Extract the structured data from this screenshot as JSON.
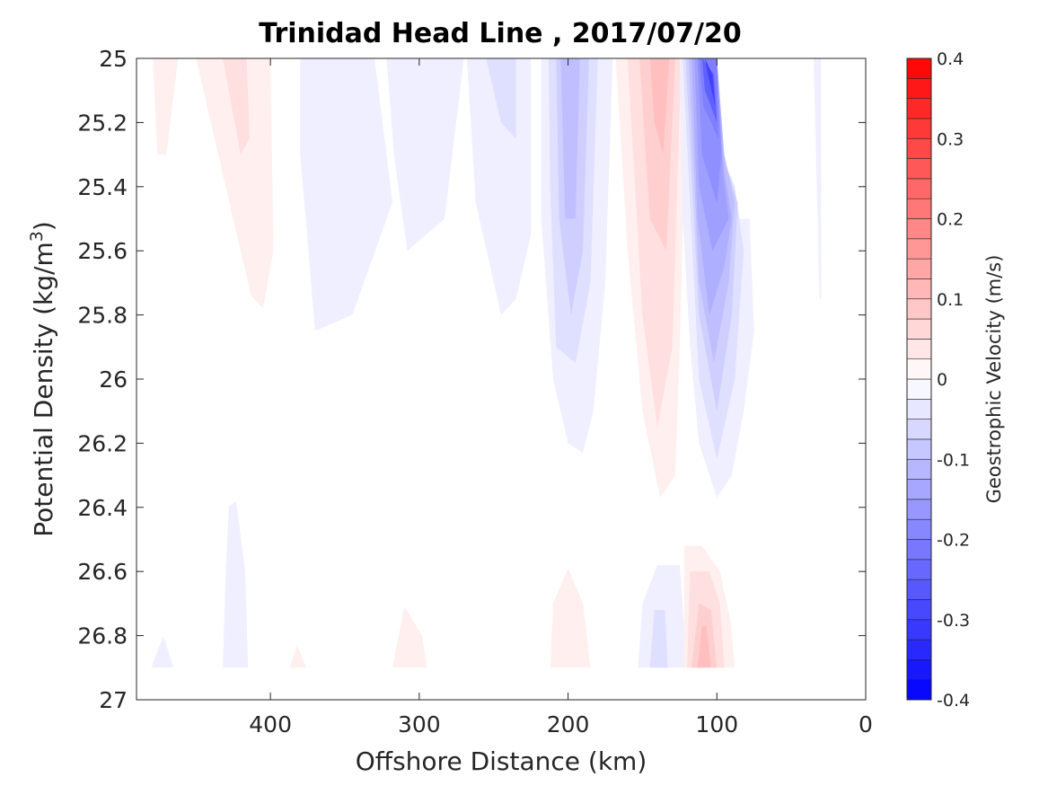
{
  "chart_data": {
    "type": "heatmap",
    "title": "Trinidad Head Line , 2017/07/20",
    "xlabel": "Offshore Distance (km)",
    "ylabel_main": "Potential Density (kg/m",
    "ylabel_sup": "3",
    "ylabel_close": ")",
    "xlim": [
      490,
      0
    ],
    "ylim": [
      25,
      27
    ],
    "x_reversed": true,
    "y_reversed": true,
    "x_ticks": [
      400,
      300,
      200,
      100,
      0
    ],
    "y_ticks": [
      25,
      25.2,
      25.4,
      25.6,
      25.8,
      26,
      26.2,
      26.4,
      26.6,
      26.8,
      27
    ],
    "y_tick_labels": [
      "25",
      "25.2",
      "25.4",
      "25.6",
      "25.8",
      "26",
      "26.2",
      "26.4",
      "26.6",
      "26.8",
      "27"
    ],
    "colorbar": {
      "label": "Geostrophic Velocity (m/s)",
      "range": [
        -0.4,
        0.4
      ],
      "levels_step": 0.025,
      "ticks": [
        0.4,
        0.3,
        0.2,
        0.1,
        0,
        -0.1,
        -0.2,
        -0.3,
        -0.4
      ],
      "tick_labels": [
        "0.4",
        "0.3",
        "0.2",
        "0.1",
        "0",
        "-0.1",
        "-0.2",
        "-0.3",
        "-0.4"
      ],
      "positive_color": "#ff0000",
      "negative_color": "#0000ff",
      "zero_color": "#ffffff"
    },
    "contour_regions": [
      {
        "name": "pos-475",
        "value": 0.025,
        "points": [
          [
            479,
            25
          ],
          [
            462,
            25
          ],
          [
            470,
            25.3
          ],
          [
            476,
            25.3
          ]
        ]
      },
      {
        "name": "pos-420-outer",
        "value": 0.025,
        "points": [
          [
            450,
            25
          ],
          [
            400,
            25
          ],
          [
            398,
            25.6
          ],
          [
            405,
            25.78
          ],
          [
            413,
            25.74
          ],
          [
            435,
            25.3
          ]
        ]
      },
      {
        "name": "pos-420-inner",
        "value": 0.05,
        "points": [
          [
            432,
            25
          ],
          [
            416,
            25
          ],
          [
            414,
            25.25
          ],
          [
            420,
            25.3
          ]
        ]
      },
      {
        "name": "neg-380",
        "value": -0.025,
        "points": [
          [
            380,
            25
          ],
          [
            330,
            25
          ],
          [
            318,
            25.45
          ],
          [
            345,
            25.8
          ],
          [
            370,
            25.85
          ],
          [
            380,
            25.3
          ]
        ]
      },
      {
        "name": "neg-300",
        "value": -0.025,
        "points": [
          [
            322,
            25
          ],
          [
            270,
            25
          ],
          [
            283,
            25.5
          ],
          [
            308,
            25.6
          ],
          [
            317,
            25.3
          ]
        ]
      },
      {
        "name": "neg-250-outer",
        "value": -0.025,
        "points": [
          [
            268,
            25
          ],
          [
            225,
            25
          ],
          [
            225,
            25.55
          ],
          [
            235,
            25.75
          ],
          [
            245,
            25.8
          ],
          [
            262,
            25.45
          ]
        ]
      },
      {
        "name": "neg-250-inner",
        "value": -0.05,
        "points": [
          [
            255,
            25
          ],
          [
            235,
            25
          ],
          [
            235,
            25.25
          ],
          [
            245,
            25.2
          ]
        ]
      },
      {
        "name": "neg-200-1",
        "value": -0.025,
        "points": [
          [
            218,
            25
          ],
          [
            170,
            25
          ],
          [
            175,
            25.7
          ],
          [
            183,
            26.1
          ],
          [
            190,
            26.23
          ],
          [
            200,
            26.2
          ],
          [
            210,
            26
          ],
          [
            218,
            25.5
          ]
        ]
      },
      {
        "name": "neg-200-2",
        "value": -0.05,
        "points": [
          [
            213,
            25
          ],
          [
            180,
            25
          ],
          [
            185,
            25.7
          ],
          [
            195,
            25.95
          ],
          [
            208,
            25.9
          ],
          [
            212,
            25.4
          ]
        ]
      },
      {
        "name": "neg-200-3",
        "value": -0.075,
        "points": [
          [
            208,
            25
          ],
          [
            186,
            25
          ],
          [
            190,
            25.6
          ],
          [
            198,
            25.8
          ],
          [
            206,
            25.5
          ]
        ]
      },
      {
        "name": "neg-200-4",
        "value": -0.1,
        "points": [
          [
            205,
            25
          ],
          [
            192,
            25
          ],
          [
            195,
            25.5
          ],
          [
            202,
            25.5
          ]
        ]
      },
      {
        "name": "pos-140-1",
        "value": 0.025,
        "points": [
          [
            168,
            25
          ],
          [
            120,
            25
          ],
          [
            125,
            25.9
          ],
          [
            128,
            26.3
          ],
          [
            138,
            26.37
          ],
          [
            150,
            26.1
          ],
          [
            160,
            25.6
          ]
        ]
      },
      {
        "name": "pos-140-2",
        "value": 0.05,
        "points": [
          [
            160,
            25
          ],
          [
            124,
            25
          ],
          [
            130,
            25.9
          ],
          [
            140,
            26.15
          ],
          [
            150,
            25.8
          ]
        ]
      },
      {
        "name": "pos-140-3",
        "value": 0.075,
        "points": [
          [
            152,
            25
          ],
          [
            128,
            25
          ],
          [
            134,
            25.6
          ],
          [
            145,
            25.5
          ]
        ]
      },
      {
        "name": "pos-140-4",
        "value": 0.1,
        "points": [
          [
            145,
            25
          ],
          [
            132,
            25
          ],
          [
            136,
            25.3
          ],
          [
            142,
            25.2
          ]
        ]
      },
      {
        "name": "neg-100-1",
        "value": -0.025,
        "points": [
          [
            125,
            25
          ],
          [
            100,
            25
          ],
          [
            98,
            25.3
          ],
          [
            85,
            25.5
          ],
          [
            78,
            25.5
          ],
          [
            75,
            25.85
          ],
          [
            82,
            26.1
          ],
          [
            90,
            26.3
          ],
          [
            100,
            26.37
          ],
          [
            112,
            26.2
          ],
          [
            118,
            25.9
          ],
          [
            123,
            25.5
          ]
        ]
      },
      {
        "name": "neg-100-2",
        "value": -0.05,
        "points": [
          [
            123,
            25
          ],
          [
            100,
            25
          ],
          [
            97,
            25.3
          ],
          [
            88,
            25.4
          ],
          [
            82,
            25.6
          ],
          [
            88,
            26
          ],
          [
            100,
            26.25
          ],
          [
            112,
            26
          ]
        ]
      },
      {
        "name": "neg-100-3",
        "value": -0.075,
        "points": [
          [
            121,
            25
          ],
          [
            100,
            25
          ],
          [
            96,
            25.3
          ],
          [
            86,
            25.45
          ],
          [
            90,
            25.8
          ],
          [
            100,
            26.1
          ],
          [
            112,
            25.8
          ]
        ]
      },
      {
        "name": "neg-100-4",
        "value": -0.1,
        "points": [
          [
            119,
            25
          ],
          [
            100,
            25
          ],
          [
            95,
            25.3
          ],
          [
            88,
            25.45
          ],
          [
            92,
            25.7
          ],
          [
            102,
            25.95
          ],
          [
            112,
            25.7
          ]
        ]
      },
      {
        "name": "neg-100-5",
        "value": -0.125,
        "points": [
          [
            117,
            25
          ],
          [
            100,
            25
          ],
          [
            95,
            25.35
          ],
          [
            90,
            25.5
          ],
          [
            95,
            25.65
          ],
          [
            105,
            25.8
          ],
          [
            113,
            25.5
          ]
        ]
      },
      {
        "name": "neg-100-6",
        "value": -0.15,
        "points": [
          [
            115,
            25
          ],
          [
            100,
            25
          ],
          [
            96,
            25.35
          ],
          [
            92,
            25.5
          ],
          [
            103,
            25.6
          ],
          [
            112,
            25.4
          ]
        ]
      },
      {
        "name": "neg-100-7",
        "value": -0.175,
        "points": [
          [
            113,
            25
          ],
          [
            100,
            25
          ],
          [
            97,
            25.3
          ],
          [
            100,
            25.45
          ],
          [
            110,
            25.3
          ]
        ]
      },
      {
        "name": "neg-100-8",
        "value": -0.2,
        "points": [
          [
            112,
            25
          ],
          [
            100,
            25
          ],
          [
            99,
            25.25
          ],
          [
            109,
            25.15
          ]
        ]
      },
      {
        "name": "neg-100-9",
        "value": -0.25,
        "points": [
          [
            110,
            25
          ],
          [
            102,
            25.05
          ],
          [
            100,
            25.2
          ],
          [
            108,
            25.1
          ]
        ]
      },
      {
        "name": "neg-100-10",
        "value": -0.3,
        "points": [
          [
            108,
            25
          ],
          [
            103,
            25.05
          ],
          [
            101,
            25.15
          ],
          [
            106,
            25.05
          ]
        ]
      },
      {
        "name": "neg-30",
        "value": -0.025,
        "points": [
          [
            35,
            25
          ],
          [
            30,
            25
          ],
          [
            30,
            25.75
          ],
          [
            31,
            25.75
          ]
        ]
      },
      {
        "name": "neg-460-bottom",
        "value": -0.025,
        "points": [
          [
            480,
            26.9
          ],
          [
            465,
            26.9
          ],
          [
            472,
            26.8
          ]
        ]
      },
      {
        "name": "neg-420-bottom",
        "value": -0.025,
        "points": [
          [
            432,
            26.9
          ],
          [
            415,
            26.9
          ],
          [
            417,
            26.6
          ],
          [
            423,
            26.38
          ],
          [
            428,
            26.4
          ],
          [
            430,
            26.6
          ]
        ]
      },
      {
        "name": "pos-385-bottom",
        "value": 0.025,
        "points": [
          [
            387,
            26.9
          ],
          [
            376,
            26.9
          ],
          [
            382,
            26.83
          ]
        ]
      },
      {
        "name": "pos-310-bottom",
        "value": 0.025,
        "points": [
          [
            318,
            26.9
          ],
          [
            295,
            26.9
          ],
          [
            298,
            26.8
          ],
          [
            310,
            26.71
          ]
        ]
      },
      {
        "name": "pos-200-bottom",
        "value": 0.025,
        "points": [
          [
            212,
            26.9
          ],
          [
            185,
            26.9
          ],
          [
            190,
            26.7
          ],
          [
            200,
            26.59
          ],
          [
            210,
            26.7
          ]
        ]
      },
      {
        "name": "neg-140-bottom-1",
        "value": -0.025,
        "points": [
          [
            153,
            26.9
          ],
          [
            120,
            26.9
          ],
          [
            125,
            26.58
          ],
          [
            140,
            26.58
          ],
          [
            150,
            26.7
          ]
        ]
      },
      {
        "name": "neg-140-bottom-2",
        "value": -0.05,
        "points": [
          [
            145,
            26.9
          ],
          [
            133,
            26.9
          ],
          [
            135,
            26.72
          ],
          [
            142,
            26.72
          ]
        ]
      },
      {
        "name": "pos-110-bottom-1",
        "value": 0.025,
        "points": [
          [
            122,
            26.9
          ],
          [
            88,
            26.9
          ],
          [
            91,
            26.75
          ],
          [
            98,
            26.6
          ],
          [
            110,
            26.52
          ],
          [
            122,
            26.52
          ]
        ]
      },
      {
        "name": "pos-110-bottom-2",
        "value": 0.05,
        "points": [
          [
            120,
            26.9
          ],
          [
            95,
            26.9
          ],
          [
            98,
            26.7
          ],
          [
            105,
            26.6
          ],
          [
            118,
            26.6
          ]
        ]
      },
      {
        "name": "pos-110-bottom-3",
        "value": 0.075,
        "points": [
          [
            117,
            26.9
          ],
          [
            100,
            26.9
          ],
          [
            104,
            26.72
          ],
          [
            112,
            26.7
          ]
        ]
      },
      {
        "name": "pos-110-bottom-4",
        "value": 0.1,
        "points": [
          [
            113,
            26.9
          ],
          [
            104,
            26.9
          ],
          [
            107,
            26.77
          ],
          [
            110,
            26.77
          ]
        ]
      }
    ]
  }
}
